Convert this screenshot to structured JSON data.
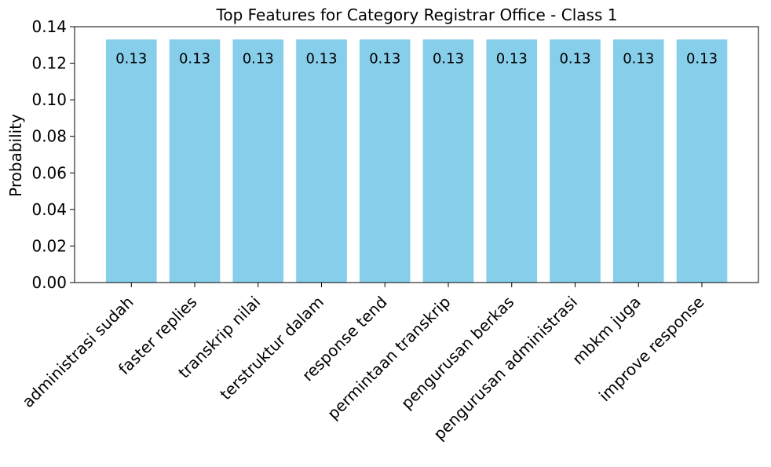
{
  "chart_data": {
    "type": "bar",
    "title": "Top Features for Category Registrar Office - Class 1",
    "xlabel": "",
    "ylabel": "Probability",
    "ylim": [
      0,
      0.14
    ],
    "yticks": [
      "0.00",
      "0.02",
      "0.04",
      "0.06",
      "0.08",
      "0.10",
      "0.12",
      "0.14"
    ],
    "categories": [
      "administrasi sudah",
      "faster replies",
      "transkrip nilai",
      "terstruktur dalam",
      "response tend",
      "permintaan transkrip",
      "pengurusan berkas",
      "pengurusan administrasi",
      "mbkm juga",
      "improve response"
    ],
    "values": [
      0.133,
      0.133,
      0.133,
      0.133,
      0.133,
      0.133,
      0.133,
      0.133,
      0.133,
      0.133
    ],
    "data_labels": [
      "0.13",
      "0.13",
      "0.13",
      "0.13",
      "0.13",
      "0.13",
      "0.13",
      "0.13",
      "0.13",
      "0.13"
    ],
    "bar_color": "#87ceeb",
    "grid": false,
    "legend": "none"
  }
}
